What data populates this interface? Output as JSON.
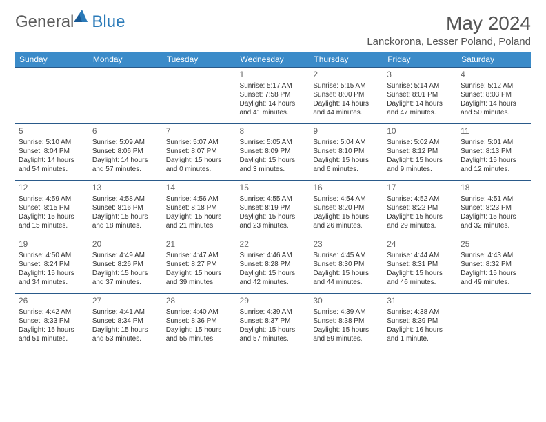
{
  "logo": {
    "general": "General",
    "blue": "Blue"
  },
  "title": "May 2024",
  "location": "Lanckorona, Lesser Poland, Poland",
  "day_headers": [
    "Sunday",
    "Monday",
    "Tuesday",
    "Wednesday",
    "Thursday",
    "Friday",
    "Saturday"
  ],
  "colors": {
    "header_bg": "#3b8bc9",
    "header_text": "#ffffff",
    "border": "#2a5a8a",
    "logo_gray": "#5a5a5a",
    "logo_blue": "#2a7ab8",
    "title_color": "#555555",
    "body_text": "#333333"
  },
  "typography": {
    "month_title_size": 28,
    "location_size": 15,
    "header_size": 12,
    "daynum_size": 12,
    "cell_text_size": 10
  },
  "weeks": [
    [
      null,
      null,
      null,
      {
        "n": "1",
        "sr": "5:17 AM",
        "ss": "7:58 PM",
        "d1": "Daylight: 14 hours",
        "d2": "and 41 minutes."
      },
      {
        "n": "2",
        "sr": "5:15 AM",
        "ss": "8:00 PM",
        "d1": "Daylight: 14 hours",
        "d2": "and 44 minutes."
      },
      {
        "n": "3",
        "sr": "5:14 AM",
        "ss": "8:01 PM",
        "d1": "Daylight: 14 hours",
        "d2": "and 47 minutes."
      },
      {
        "n": "4",
        "sr": "5:12 AM",
        "ss": "8:03 PM",
        "d1": "Daylight: 14 hours",
        "d2": "and 50 minutes."
      }
    ],
    [
      {
        "n": "5",
        "sr": "5:10 AM",
        "ss": "8:04 PM",
        "d1": "Daylight: 14 hours",
        "d2": "and 54 minutes."
      },
      {
        "n": "6",
        "sr": "5:09 AM",
        "ss": "8:06 PM",
        "d1": "Daylight: 14 hours",
        "d2": "and 57 minutes."
      },
      {
        "n": "7",
        "sr": "5:07 AM",
        "ss": "8:07 PM",
        "d1": "Daylight: 15 hours",
        "d2": "and 0 minutes."
      },
      {
        "n": "8",
        "sr": "5:05 AM",
        "ss": "8:09 PM",
        "d1": "Daylight: 15 hours",
        "d2": "and 3 minutes."
      },
      {
        "n": "9",
        "sr": "5:04 AM",
        "ss": "8:10 PM",
        "d1": "Daylight: 15 hours",
        "d2": "and 6 minutes."
      },
      {
        "n": "10",
        "sr": "5:02 AM",
        "ss": "8:12 PM",
        "d1": "Daylight: 15 hours",
        "d2": "and 9 minutes."
      },
      {
        "n": "11",
        "sr": "5:01 AM",
        "ss": "8:13 PM",
        "d1": "Daylight: 15 hours",
        "d2": "and 12 minutes."
      }
    ],
    [
      {
        "n": "12",
        "sr": "4:59 AM",
        "ss": "8:15 PM",
        "d1": "Daylight: 15 hours",
        "d2": "and 15 minutes."
      },
      {
        "n": "13",
        "sr": "4:58 AM",
        "ss": "8:16 PM",
        "d1": "Daylight: 15 hours",
        "d2": "and 18 minutes."
      },
      {
        "n": "14",
        "sr": "4:56 AM",
        "ss": "8:18 PM",
        "d1": "Daylight: 15 hours",
        "d2": "and 21 minutes."
      },
      {
        "n": "15",
        "sr": "4:55 AM",
        "ss": "8:19 PM",
        "d1": "Daylight: 15 hours",
        "d2": "and 23 minutes."
      },
      {
        "n": "16",
        "sr": "4:54 AM",
        "ss": "8:20 PM",
        "d1": "Daylight: 15 hours",
        "d2": "and 26 minutes."
      },
      {
        "n": "17",
        "sr": "4:52 AM",
        "ss": "8:22 PM",
        "d1": "Daylight: 15 hours",
        "d2": "and 29 minutes."
      },
      {
        "n": "18",
        "sr": "4:51 AM",
        "ss": "8:23 PM",
        "d1": "Daylight: 15 hours",
        "d2": "and 32 minutes."
      }
    ],
    [
      {
        "n": "19",
        "sr": "4:50 AM",
        "ss": "8:24 PM",
        "d1": "Daylight: 15 hours",
        "d2": "and 34 minutes."
      },
      {
        "n": "20",
        "sr": "4:49 AM",
        "ss": "8:26 PM",
        "d1": "Daylight: 15 hours",
        "d2": "and 37 minutes."
      },
      {
        "n": "21",
        "sr": "4:47 AM",
        "ss": "8:27 PM",
        "d1": "Daylight: 15 hours",
        "d2": "and 39 minutes."
      },
      {
        "n": "22",
        "sr": "4:46 AM",
        "ss": "8:28 PM",
        "d1": "Daylight: 15 hours",
        "d2": "and 42 minutes."
      },
      {
        "n": "23",
        "sr": "4:45 AM",
        "ss": "8:30 PM",
        "d1": "Daylight: 15 hours",
        "d2": "and 44 minutes."
      },
      {
        "n": "24",
        "sr": "4:44 AM",
        "ss": "8:31 PM",
        "d1": "Daylight: 15 hours",
        "d2": "and 46 minutes."
      },
      {
        "n": "25",
        "sr": "4:43 AM",
        "ss": "8:32 PM",
        "d1": "Daylight: 15 hours",
        "d2": "and 49 minutes."
      }
    ],
    [
      {
        "n": "26",
        "sr": "4:42 AM",
        "ss": "8:33 PM",
        "d1": "Daylight: 15 hours",
        "d2": "and 51 minutes."
      },
      {
        "n": "27",
        "sr": "4:41 AM",
        "ss": "8:34 PM",
        "d1": "Daylight: 15 hours",
        "d2": "and 53 minutes."
      },
      {
        "n": "28",
        "sr": "4:40 AM",
        "ss": "8:36 PM",
        "d1": "Daylight: 15 hours",
        "d2": "and 55 minutes."
      },
      {
        "n": "29",
        "sr": "4:39 AM",
        "ss": "8:37 PM",
        "d1": "Daylight: 15 hours",
        "d2": "and 57 minutes."
      },
      {
        "n": "30",
        "sr": "4:39 AM",
        "ss": "8:38 PM",
        "d1": "Daylight: 15 hours",
        "d2": "and 59 minutes."
      },
      {
        "n": "31",
        "sr": "4:38 AM",
        "ss": "8:39 PM",
        "d1": "Daylight: 16 hours",
        "d2": "and 1 minute."
      },
      null
    ]
  ],
  "labels": {
    "sunrise_prefix": "Sunrise: ",
    "sunset_prefix": "Sunset: "
  }
}
